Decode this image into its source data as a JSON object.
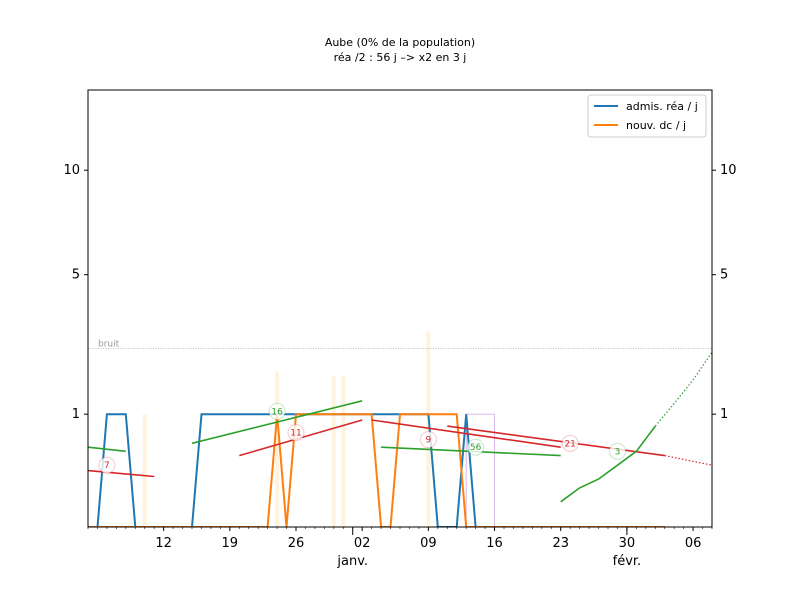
{
  "chart_data": {
    "type": "line",
    "title": "Aube (0% de la population)",
    "subtitle": "réa /2 : 56 j –> x2 en 3 j",
    "xlim": [
      "2020-12-04",
      "2021-02-08"
    ],
    "ylim": [
      0,
      15
    ],
    "yscale": "sqrt",
    "yticks": [
      1,
      5,
      10
    ],
    "xticks": [
      {
        "date": "2020-12-12",
        "label": "12"
      },
      {
        "date": "2020-12-19",
        "label": "19"
      },
      {
        "date": "2020-12-26",
        "label": "26"
      },
      {
        "date": "2021-01-02",
        "label": "02"
      },
      {
        "date": "2021-01-09",
        "label": "09"
      },
      {
        "date": "2021-01-16",
        "label": "16"
      },
      {
        "date": "2021-01-23",
        "label": "23"
      },
      {
        "date": "2021-01-30",
        "label": "30"
      },
      {
        "date": "2021-02-06",
        "label": "06"
      }
    ],
    "month_labels": [
      {
        "date": "2021-01-01",
        "label": "janv."
      },
      {
        "date": "2021-01-30",
        "label": "févr."
      }
    ],
    "grid": false,
    "legend_position": "top-right",
    "noise_level": 2.5,
    "noise_label": "bruit",
    "series": [
      {
        "name": "admis. réa / j",
        "color": "#1f77b4",
        "points": [
          [
            "2020-12-04",
            0
          ],
          [
            "2020-12-05",
            0
          ],
          [
            "2020-12-06",
            1
          ],
          [
            "2020-12-07",
            1
          ],
          [
            "2020-12-08",
            1
          ],
          [
            "2020-12-09",
            0
          ],
          [
            "2020-12-10",
            0
          ],
          [
            "2020-12-11",
            0
          ],
          [
            "2020-12-12",
            0
          ],
          [
            "2020-12-13",
            0
          ],
          [
            "2020-12-14",
            0
          ],
          [
            "2020-12-15",
            0
          ],
          [
            "2020-12-16",
            1
          ],
          [
            "2020-12-17",
            1
          ],
          [
            "2020-12-18",
            1
          ],
          [
            "2020-12-19",
            1
          ],
          [
            "2020-12-20",
            1
          ],
          [
            "2020-12-21",
            1
          ],
          [
            "2020-12-22",
            1
          ],
          [
            "2020-12-23",
            1
          ],
          [
            "2020-12-24",
            1
          ],
          [
            "2020-12-25",
            1
          ],
          [
            "2020-12-26",
            1
          ],
          [
            "2020-12-27",
            1
          ],
          [
            "2020-12-28",
            1
          ],
          [
            "2020-12-29",
            1
          ],
          [
            "2020-12-30",
            1
          ],
          [
            "2020-12-31",
            1
          ],
          [
            "2021-01-01",
            1
          ],
          [
            "2021-01-02",
            1
          ],
          [
            "2021-01-03",
            1
          ],
          [
            "2021-01-04",
            1
          ],
          [
            "2021-01-05",
            1
          ],
          [
            "2021-01-06",
            1
          ],
          [
            "2021-01-07",
            1
          ],
          [
            "2021-01-08",
            1
          ],
          [
            "2021-01-09",
            1
          ],
          [
            "2021-01-10",
            0
          ],
          [
            "2021-01-11",
            0
          ],
          [
            "2021-01-12",
            0
          ],
          [
            "2021-01-13",
            1
          ],
          [
            "2021-01-14",
            0
          ],
          [
            "2021-01-15",
            0
          ],
          [
            "2021-01-16",
            0
          ],
          [
            "2021-01-17",
            0
          ],
          [
            "2021-01-18",
            0
          ],
          [
            "2021-01-19",
            0
          ],
          [
            "2021-01-20",
            0
          ],
          [
            "2021-01-21",
            0
          ],
          [
            "2021-01-22",
            0
          ],
          [
            "2021-01-23",
            0
          ],
          [
            "2021-01-24",
            0
          ],
          [
            "2021-01-25",
            0
          ],
          [
            "2021-01-26",
            0
          ],
          [
            "2021-01-27",
            0
          ],
          [
            "2021-01-28",
            0
          ],
          [
            "2021-01-29",
            0
          ],
          [
            "2021-01-30",
            0
          ],
          [
            "2021-01-31",
            0
          ],
          [
            "2021-02-01",
            0
          ],
          [
            "2021-02-02",
            0
          ],
          [
            "2021-02-03",
            0
          ]
        ]
      },
      {
        "name": "nouv. dc / j",
        "color": "#ff7f0e",
        "points": [
          [
            "2020-12-04",
            0
          ],
          [
            "2020-12-10",
            0
          ],
          [
            "2020-12-20",
            0
          ],
          [
            "2020-12-23",
            0
          ],
          [
            "2020-12-24",
            1
          ],
          [
            "2020-12-25",
            0
          ],
          [
            "2020-12-26",
            1
          ],
          [
            "2020-12-27",
            1
          ],
          [
            "2020-12-28",
            1
          ],
          [
            "2020-12-29",
            1
          ],
          [
            "2020-12-30",
            1
          ],
          [
            "2020-12-31",
            1
          ],
          [
            "2021-01-01",
            1
          ],
          [
            "2021-01-02",
            1
          ],
          [
            "2021-01-03",
            1
          ],
          [
            "2021-01-04",
            0
          ],
          [
            "2021-01-05",
            0
          ],
          [
            "2021-01-06",
            1
          ],
          [
            "2021-01-07",
            1
          ],
          [
            "2021-01-08",
            1
          ],
          [
            "2021-01-09",
            1
          ],
          [
            "2021-01-10",
            1
          ],
          [
            "2021-01-11",
            1
          ],
          [
            "2021-01-12",
            1
          ],
          [
            "2021-01-13",
            0
          ],
          [
            "2021-01-20",
            0
          ],
          [
            "2021-01-30",
            0
          ],
          [
            "2021-02-03",
            0
          ]
        ]
      }
    ],
    "trend_lines": [
      {
        "color": "#2ca02c",
        "points": [
          [
            "2020-12-04",
            0.5
          ],
          [
            "2020-12-08",
            0.45
          ]
        ]
      },
      {
        "color": "#d62728",
        "points": [
          [
            "2020-12-04",
            0.25
          ],
          [
            "2020-12-11",
            0.2
          ]
        ]
      },
      {
        "color": "#2ca02c",
        "points": [
          [
            "2020-12-15",
            0.55
          ],
          [
            "2021-01-02",
            1.25
          ]
        ]
      },
      {
        "color": "#d62728",
        "points": [
          [
            "2020-12-20",
            0.4
          ],
          [
            "2021-01-02",
            0.9
          ]
        ]
      },
      {
        "color": "#d62728",
        "points": [
          [
            "2021-01-03",
            0.9
          ],
          [
            "2021-01-23",
            0.5
          ]
        ]
      },
      {
        "color": "#2ca02c",
        "points": [
          [
            "2021-01-04",
            0.5
          ],
          [
            "2021-01-23",
            0.4
          ]
        ]
      },
      {
        "color": "#d62728",
        "points": [
          [
            "2021-01-11",
            0.8
          ],
          [
            "2021-02-03",
            0.4
          ]
        ]
      },
      {
        "color": "#2ca02c",
        "points": [
          [
            "2021-01-23",
            0.05
          ],
          [
            "2021-01-25",
            0.12
          ],
          [
            "2021-01-27",
            0.18
          ],
          [
            "2021-01-29",
            0.3
          ],
          [
            "2021-01-31",
            0.45
          ],
          [
            "2021-02-02",
            0.8
          ]
        ]
      }
    ],
    "projections": [
      {
        "color": "#d62728",
        "style": "dotted",
        "points": [
          [
            "2021-02-03",
            0.4
          ],
          [
            "2021-02-08",
            0.3
          ]
        ]
      },
      {
        "color": "#2ca02c",
        "style": "dotted",
        "points": [
          [
            "2021-02-02",
            0.8
          ],
          [
            "2021-02-04",
            1.2
          ],
          [
            "2021-02-06",
            1.7
          ],
          [
            "2021-02-08",
            2.4
          ]
        ]
      }
    ],
    "annotations": [
      {
        "date": "2020-12-06",
        "y": 0.3,
        "text": "7",
        "color": "#d62728"
      },
      {
        "date": "2020-12-24",
        "y": 1.05,
        "text": "16",
        "color": "#2ca02c"
      },
      {
        "date": "2020-12-26",
        "y": 0.7,
        "text": "11",
        "color": "#d62728"
      },
      {
        "date": "2021-01-09",
        "y": 0.6,
        "text": "9",
        "color": "#d62728"
      },
      {
        "date": "2021-01-14",
        "y": 0.5,
        "text": "56",
        "color": "#2ca02c"
      },
      {
        "date": "2021-01-24",
        "y": 0.55,
        "text": "21",
        "color": "#d62728"
      },
      {
        "date": "2021-01-29",
        "y": 0.45,
        "text": "3",
        "color": "#2ca02c"
      }
    ],
    "background_bars": [
      {
        "date": "2020-12-10",
        "y": 1.0
      },
      {
        "date": "2020-12-24",
        "y": 1.9
      },
      {
        "date": "2020-12-30",
        "y": 1.8
      },
      {
        "date": "2020-12-31",
        "y": 1.8
      },
      {
        "date": "2021-01-09",
        "y": 3.0
      }
    ],
    "highlight_boxes": [
      {
        "start": "2021-01-13",
        "end": "2021-01-16",
        "y": 1.0
      }
    ]
  }
}
